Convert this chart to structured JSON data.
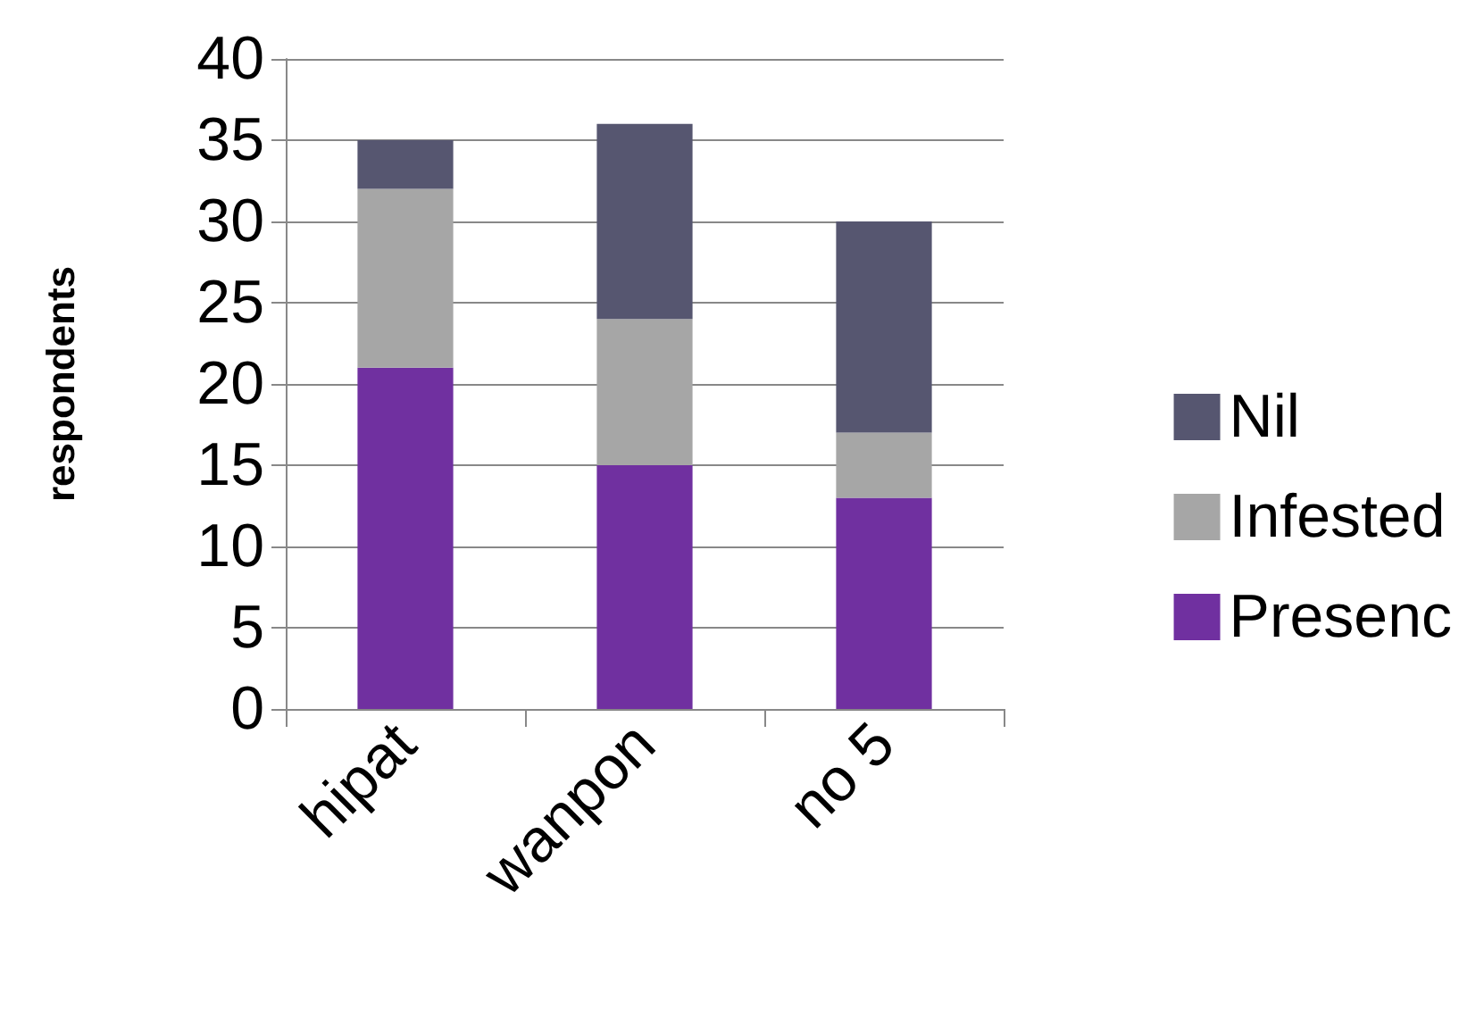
{
  "chart_data": {
    "type": "bar",
    "ylabel": "respondents",
    "categories": [
      "hipat",
      "wanpon",
      "no 5"
    ],
    "stacked": true,
    "grid": "y",
    "legend": "right",
    "ylim": [
      0,
      40
    ],
    "yticks": [
      0,
      5,
      10,
      15,
      20,
      25,
      30,
      35,
      40
    ],
    "series": [
      {
        "name": "Presenc",
        "color": "#7030a0",
        "values": [
          21,
          15,
          13
        ]
      },
      {
        "name": "Infested",
        "color": "#a6a6a6",
        "values": [
          11,
          9,
          4
        ]
      },
      {
        "name": "Nil",
        "color": "#565670",
        "values": [
          3,
          12,
          13
        ]
      }
    ]
  }
}
